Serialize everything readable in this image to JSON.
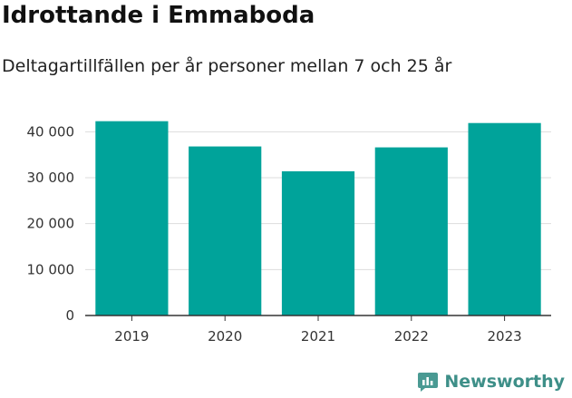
{
  "header": {
    "title": "Idrottande i Emmaboda",
    "subtitle": "Deltagartillfällen per år personer mellan 7 och 25 år"
  },
  "brand": {
    "name": "Newsworthy",
    "icon": "newsworthy-logo-icon"
  },
  "colors": {
    "bar": "#00a39a",
    "grid": "#dddddd",
    "axis": "#333333",
    "brand": "#3e8f88"
  },
  "chart_data": {
    "type": "bar",
    "title": "Idrottande i Emmaboda",
    "subtitle": "Deltagartillfällen per år personer mellan 7 och 25 år",
    "xlabel": "",
    "ylabel": "",
    "categories": [
      "2019",
      "2020",
      "2021",
      "2022",
      "2023"
    ],
    "values": [
      42300,
      36800,
      31400,
      36600,
      41900
    ],
    "ylim": [
      0,
      45000
    ],
    "yticks": [
      0,
      10000,
      20000,
      30000,
      40000
    ],
    "ytick_labels": [
      "0",
      "10 000",
      "20 000",
      "30 000",
      "40 000"
    ],
    "grid": true,
    "legend": "none"
  }
}
